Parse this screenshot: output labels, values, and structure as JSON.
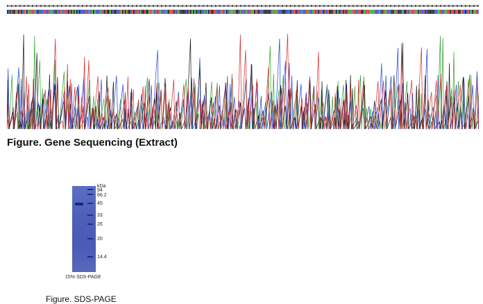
{
  "sequencing": {
    "title": "Figure. Gene Sequencing (Extract)",
    "trace_colors": {
      "A": "#2ca02c",
      "C": "#1f3fd6",
      "G": "#111111",
      "T": "#d62728"
    }
  },
  "sds_page": {
    "unit_label": "kDa",
    "marker_weights": [
      "94",
      "66.2",
      "45",
      "33",
      "26",
      "20",
      "14.4"
    ],
    "gel_caption": "15% SDS-PAGE",
    "gel_color": "#5566c0",
    "band_color": "#1d2a8f",
    "title": "Figure. SDS-PAGE"
  }
}
